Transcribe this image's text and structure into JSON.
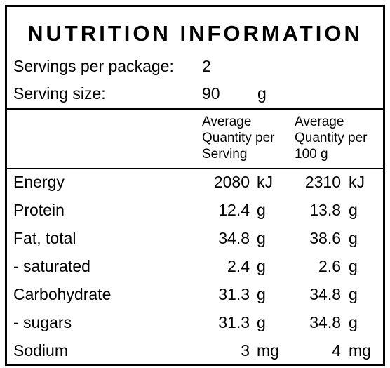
{
  "panel": {
    "title": "NUTRITION INFORMATION",
    "servings_label": "Servings per package:",
    "servings_value": "2",
    "serving_size_label": "Serving size:",
    "serving_size_value": "90",
    "serving_size_unit": "g"
  },
  "columns": {
    "per_serving": "Average\nQuantity per\nServing",
    "per_100g": "Average\nQuantity per\n100 g"
  },
  "rows": [
    {
      "label": "Energy",
      "serving": "2080",
      "serving_unit": "kJ",
      "per100": "2310",
      "per100_unit": "kJ"
    },
    {
      "label": "Protein",
      "serving": "12.4",
      "serving_unit": "g",
      "per100": "13.8",
      "per100_unit": "g"
    },
    {
      "label": "Fat, total",
      "serving": "34.8",
      "serving_unit": "g",
      "per100": "38.6",
      "per100_unit": "g"
    },
    {
      "label": "- saturated",
      "serving": "2.4",
      "serving_unit": "g",
      "per100": "2.6",
      "per100_unit": "g"
    },
    {
      "label": "Carbohydrate",
      "serving": "31.3",
      "serving_unit": "g",
      "per100": "34.8",
      "per100_unit": "g"
    },
    {
      "label": "- sugars",
      "serving": "31.3",
      "serving_unit": "g",
      "per100": "34.8",
      "per100_unit": "g"
    },
    {
      "label": "Sodium",
      "serving": "3",
      "serving_unit": "mg",
      "per100": "4",
      "per100_unit": "mg"
    }
  ]
}
